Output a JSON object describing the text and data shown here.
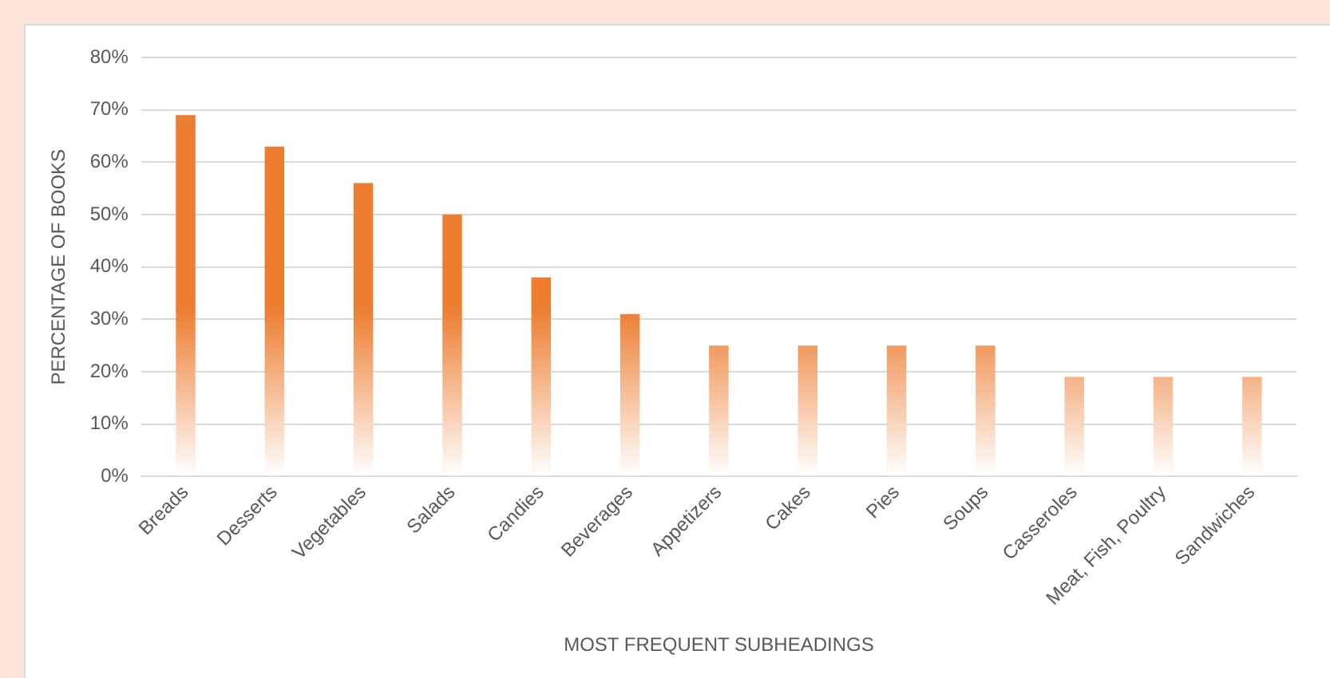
{
  "chart_data": {
    "type": "bar",
    "xlabel": "MOST FREQUENT SUBHEADINGS",
    "ylabel": "PERCENTAGE OF BOOKS",
    "categories": [
      "Breads",
      "Desserts",
      "Vegetables",
      "Salads",
      "Candies",
      "Beverages",
      "Appetizers",
      "Cakes",
      "Pies",
      "Soups",
      "Casseroles",
      "Meat, Fish, Poultry",
      "Sandwiches"
    ],
    "values": [
      69,
      63,
      56,
      50,
      38,
      31,
      25,
      25,
      25,
      25,
      19,
      19,
      19
    ],
    "color": "#ed7d31",
    "ylim": [
      0,
      80
    ],
    "yticks": [
      {
        "value": 0,
        "label": "0%"
      },
      {
        "value": 10,
        "label": "10%"
      },
      {
        "value": 20,
        "label": "20%"
      },
      {
        "value": 30,
        "label": "30%"
      },
      {
        "value": 40,
        "label": "40%"
      },
      {
        "value": 50,
        "label": "50%"
      },
      {
        "value": 60,
        "label": "60%"
      },
      {
        "value": 70,
        "label": "70%"
      },
      {
        "value": 80,
        "label": "80%"
      }
    ],
    "grid": "y",
    "legend": false
  }
}
